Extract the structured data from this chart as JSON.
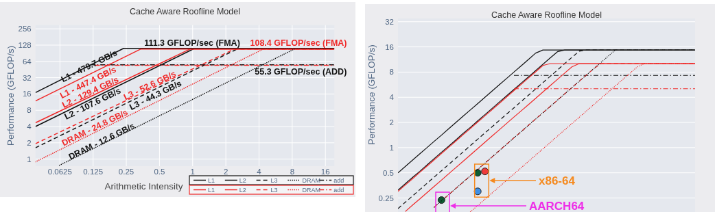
{
  "chart_data": [
    {
      "type": "line",
      "title": "Cache Aware Roofline Model",
      "xlabel": "Arithmetic Intensity",
      "ylabel": "Performance (GFLOP/s)",
      "log": "xy",
      "grid": true,
      "legend": "bottom right",
      "xlim": [
        0.0375,
        19.3
      ],
      "ylim": [
        0.74,
        300
      ],
      "xticks": [
        0.0625,
        0.125,
        0.25,
        0.5,
        1,
        2,
        4,
        8,
        16
      ],
      "yticks": [
        1,
        2,
        4,
        8,
        16,
        32,
        64,
        128,
        256
      ],
      "series": [
        {
          "name": "L1",
          "color": "#111111",
          "line_style": "solid",
          "x": [
            0.0375,
            0.236,
            19.3
          ],
          "values": [
            17,
            111.3,
            111.3
          ]
        },
        {
          "name": "L2",
          "color": "#111111",
          "line_style": "solid",
          "x": [
            0.0375,
            1.04,
            19.3
          ],
          "values": [
            4,
            111.3,
            111.3
          ]
        },
        {
          "name": "L3",
          "color": "#111111",
          "line_style": "dashed",
          "x": [
            0.0375,
            2.6,
            19.3
          ],
          "values": [
            1.62,
            111.3,
            111.3
          ]
        },
        {
          "name": "DRAM",
          "color": "#111111",
          "line_style": "dotted",
          "x": [
            0.062,
            8.6,
            19.3
          ],
          "values": [
            0.77,
            111.3,
            111.3
          ]
        },
        {
          "name": "add",
          "color": "#111111",
          "line_style": "dashdot",
          "x": [
            0.118,
            19.3
          ],
          "values": [
            55.3,
            55.3
          ]
        },
        {
          "name": "L1",
          "color": "#f02828",
          "line_style": "solid",
          "x": [
            0.0375,
            0.339,
            19.3
          ],
          "values": [
            11.9,
            108.4,
            108.4
          ]
        },
        {
          "name": "L2",
          "color": "#f02828",
          "line_style": "solid",
          "x": [
            0.0375,
            0.95,
            19.3
          ],
          "values": [
            4.7,
            108.4,
            108.4
          ]
        },
        {
          "name": "L3",
          "color": "#f02828",
          "line_style": "dashed",
          "x": [
            0.0375,
            2.4,
            19.3
          ],
          "values": [
            1.93,
            108.4,
            108.4
          ]
        },
        {
          "name": "DRAM",
          "color": "#f02828",
          "line_style": "dotted",
          "x": [
            0.0375,
            4.38,
            19.3
          ],
          "values": [
            0.89,
            108.4,
            108.4
          ]
        },
        {
          "name": "add",
          "color": "#f02828",
          "line_style": "dashdot",
          "x": [
            0.13,
            19.3
          ],
          "values": [
            54,
            54
          ]
        }
      ],
      "annotations": [
        "L1 - 479.7 GB/s",
        "L1 - 447.4 GB/s",
        "L2 - 129.4 GB/s",
        "L2 - 107.6 GB/s",
        "L3 - 52.6 GB/s",
        "L3 - 44.3 GB/s",
        "DRAM - 24.8 GB/s",
        "DRAM - 12.6 GB/s",
        "111.3 GFLOP/sec (FMA)",
        "108.4 GFLOP/sec (FMA)",
        "55.3 GFLOP/sec (ADD)"
      ]
    },
    {
      "type": "line",
      "title": "Cache Aware Roofline Model",
      "ylabel": "Performance (GFLOP/s)",
      "log": "y",
      "grid": "y",
      "ylim": [
        0.17,
        35
      ],
      "yticks": [
        0.25,
        0.5,
        1,
        2,
        4,
        8,
        16,
        32
      ],
      "categories": [
        null,
        null,
        null,
        null,
        null,
        null,
        null,
        null,
        null,
        null,
        null,
        null,
        null,
        null,
        null,
        null,
        null,
        null,
        null,
        null,
        null,
        null,
        null,
        null,
        null,
        null,
        null,
        null,
        null,
        null,
        null,
        null,
        null,
        null,
        null,
        null,
        null,
        null,
        null,
        null,
        null,
        null
      ],
      "series": [
        {
          "color": "#111111",
          "line_style": "solid",
          "values": [
            0.5,
            0.595,
            0.707,
            0.841,
            1,
            1.19,
            1.41,
            1.68,
            2,
            2.38,
            2.83,
            3.36,
            4,
            4.76,
            5.66,
            6.73,
            8,
            9.51,
            11.3,
            13.5,
            14.7,
            14.7,
            14.7,
            14.7,
            14.7,
            14.7,
            14.7,
            14.7,
            14.7,
            14.7,
            14.7,
            14.7,
            14.7,
            14.7,
            14.7,
            14.7,
            14.7,
            14.7,
            14.7,
            14.7,
            14.7,
            14.7
          ]
        },
        {
          "color": "#111111",
          "line_style": "solid",
          "values": [
            0.31,
            0.37,
            0.44,
            0.52,
            0.62,
            0.74,
            0.88,
            1.04,
            1.24,
            1.48,
            1.75,
            2.09,
            2.48,
            2.95,
            3.51,
            4.17,
            4.96,
            5.9,
            7.01,
            8.34,
            9.92,
            11.8,
            14,
            14.7,
            14.7,
            14.7,
            14.7,
            14.7,
            14.7,
            14.7,
            14.7,
            14.7,
            14.7,
            14.7,
            14.7,
            14.7,
            14.7,
            14.7,
            14.7,
            14.7,
            14.7,
            14.7
          ]
        },
        {
          "color": "#111111",
          "line_style": "dashed",
          "values": [
            0.187,
            0.222,
            0.264,
            0.314,
            0.374,
            0.445,
            0.529,
            0.629,
            0.748,
            0.89,
            1.06,
            1.26,
            1.5,
            1.78,
            2.12,
            2.52,
            2.99,
            3.56,
            4.23,
            5.03,
            5.98,
            7.11,
            8.46,
            10.1,
            12,
            14.2,
            14.7,
            14.7,
            14.7,
            14.7,
            14.7,
            14.7,
            14.7,
            14.7,
            14.7,
            14.7,
            14.7,
            14.7,
            14.7,
            14.7,
            14.7,
            14.7
          ]
        },
        {
          "color": "#111111",
          "line_style": "dotted",
          "values": [
            null,
            null,
            null,
            null,
            null,
            0.194,
            0.231,
            0.274,
            0.326,
            0.388,
            0.461,
            0.549,
            0.652,
            0.776,
            0.923,
            1.1,
            1.31,
            1.55,
            1.85,
            2.2,
            2.61,
            3.1,
            3.69,
            4.39,
            5.22,
            6.21,
            7.38,
            8.78,
            10.4,
            12.4,
            14.7,
            14.7,
            14.7,
            14.7,
            14.7,
            14.7,
            14.7,
            14.7,
            14.7,
            14.7,
            14.7,
            14.7
          ]
        },
        {
          "color": "#111111",
          "line_style": "dashdot",
          "values": [
            null,
            null,
            null,
            null,
            null,
            null,
            null,
            null,
            null,
            null,
            null,
            null,
            null,
            null,
            null,
            null,
            7.3,
            7.3,
            7.3,
            7.3,
            7.3,
            7.3,
            7.3,
            7.3,
            7.3,
            7.3,
            7.3,
            7.3,
            7.3,
            7.3,
            7.3,
            7.3,
            7.3,
            7.3,
            7.3,
            7.3,
            7.3,
            7.3,
            7.3,
            7.3,
            7.3,
            7.3
          ]
        },
        {
          "color": "#f02828",
          "line_style": "solid",
          "values": [
            0.3,
            0.357,
            0.424,
            0.505,
            0.6,
            0.714,
            0.849,
            1.01,
            1.2,
            1.43,
            1.7,
            2.02,
            2.4,
            2.85,
            3.39,
            4.04,
            4.8,
            5.71,
            6.79,
            8.07,
            9.6,
            10.1,
            10.1,
            10.1,
            10.1,
            10.1,
            10.1,
            10.1,
            10.1,
            10.1,
            10.1,
            10.1,
            10.1,
            10.1,
            10.1,
            10.1,
            10.1,
            10.1,
            10.1,
            10.1,
            10.1,
            10.1
          ]
        },
        {
          "color": "#f02828",
          "line_style": "solid",
          "values": [
            null,
            0.172,
            0.205,
            0.243,
            0.289,
            0.344,
            0.409,
            0.487,
            0.579,
            0.688,
            0.818,
            0.973,
            1.16,
            1.38,
            1.64,
            1.95,
            2.32,
            2.75,
            3.27,
            3.89,
            4.63,
            5.5,
            6.54,
            7.78,
            9.25,
            10.1,
            10.1,
            10.1,
            10.1,
            10.1,
            10.1,
            10.1,
            10.1,
            10.1,
            10.1,
            10.1,
            10.1,
            10.1,
            10.1,
            10.1,
            10.1,
            10.1
          ]
        },
        {
          "color": "#f02828",
          "line_style": "dashed",
          "values": [
            null,
            null,
            null,
            null,
            null,
            0.194,
            0.231,
            0.274,
            0.326,
            0.388,
            0.461,
            0.549,
            0.652,
            0.776,
            0.923,
            1.1,
            1.31,
            1.55,
            1.85,
            2.2,
            2.61,
            3.1,
            3.69,
            4.39,
            5.22,
            6.21,
            7.38,
            8.78,
            10.1,
            10.1,
            10.1,
            10.1,
            10.1,
            10.1,
            10.1,
            10.1,
            10.1,
            10.1,
            10.1,
            10.1,
            10.1,
            10.1
          ]
        },
        {
          "color": "#f02828",
          "line_style": "dotted",
          "values": [
            null,
            null,
            null,
            null,
            null,
            null,
            null,
            null,
            null,
            null,
            0.171,
            0.203,
            0.242,
            0.288,
            0.342,
            0.407,
            0.484,
            0.575,
            0.684,
            0.814,
            0.967,
            1.15,
            1.37,
            1.63,
            1.94,
            2.3,
            2.74,
            3.26,
            3.87,
            4.6,
            5.47,
            6.51,
            7.74,
            9.21,
            10.1,
            10.1,
            10.1,
            10.1,
            10.1,
            10.1,
            10.1,
            10.1
          ]
        },
        {
          "color": "#f02828",
          "line_style": "dashdot",
          "values": [
            null,
            null,
            null,
            null,
            null,
            null,
            null,
            null,
            null,
            null,
            null,
            null,
            null,
            null,
            null,
            null,
            5.06,
            5.06,
            5.06,
            5.06,
            5.06,
            5.06,
            5.06,
            5.06,
            5.06,
            5.06,
            5.06,
            5.06,
            5.06,
            5.06,
            5.06,
            5.06,
            5.06,
            5.06,
            5.06,
            5.06,
            5.06,
            5.06,
            5.06,
            5.06,
            5.06,
            5.06
          ]
        },
        {
          "type": "scatter",
          "marker": "circle",
          "color": "#ef3b3b",
          "values": [
            null,
            null,
            null,
            null,
            null,
            null,
            null,
            null,
            null,
            null,
            null,
            null,
            0.52,
            null,
            null,
            null,
            null,
            null,
            null,
            null,
            null,
            null,
            null,
            null,
            null,
            null,
            null,
            null,
            null,
            null,
            null,
            null,
            null,
            null,
            null,
            null,
            null,
            null,
            null,
            null,
            null,
            null
          ]
        },
        {
          "type": "scatter",
          "marker": "circle",
          "color": "#0d5c32",
          "values": [
            null,
            null,
            null,
            null,
            null,
            null,
            0.236,
            null,
            null,
            null,
            null,
            0.5,
            null,
            null,
            null,
            null,
            null,
            null,
            null,
            null,
            null,
            null,
            null,
            null,
            null,
            null,
            null,
            null,
            null,
            null,
            null,
            null,
            null,
            null,
            null,
            null,
            null,
            null,
            null,
            null,
            null,
            null
          ]
        },
        {
          "type": "scatter",
          "marker": "circle",
          "color": "#3d8fe6",
          "values": [
            null,
            null,
            null,
            null,
            null,
            null,
            null,
            null,
            null,
            null,
            null,
            0.3,
            null,
            null,
            null,
            null,
            null,
            null,
            null,
            null,
            null,
            null,
            null,
            null,
            null,
            null,
            null,
            null,
            null,
            null,
            null,
            null,
            null,
            null,
            null,
            null,
            null,
            null,
            null,
            null,
            null,
            null
          ]
        }
      ],
      "annotations": [
        "x86-64",
        "AARCH64"
      ]
    }
  ]
}
